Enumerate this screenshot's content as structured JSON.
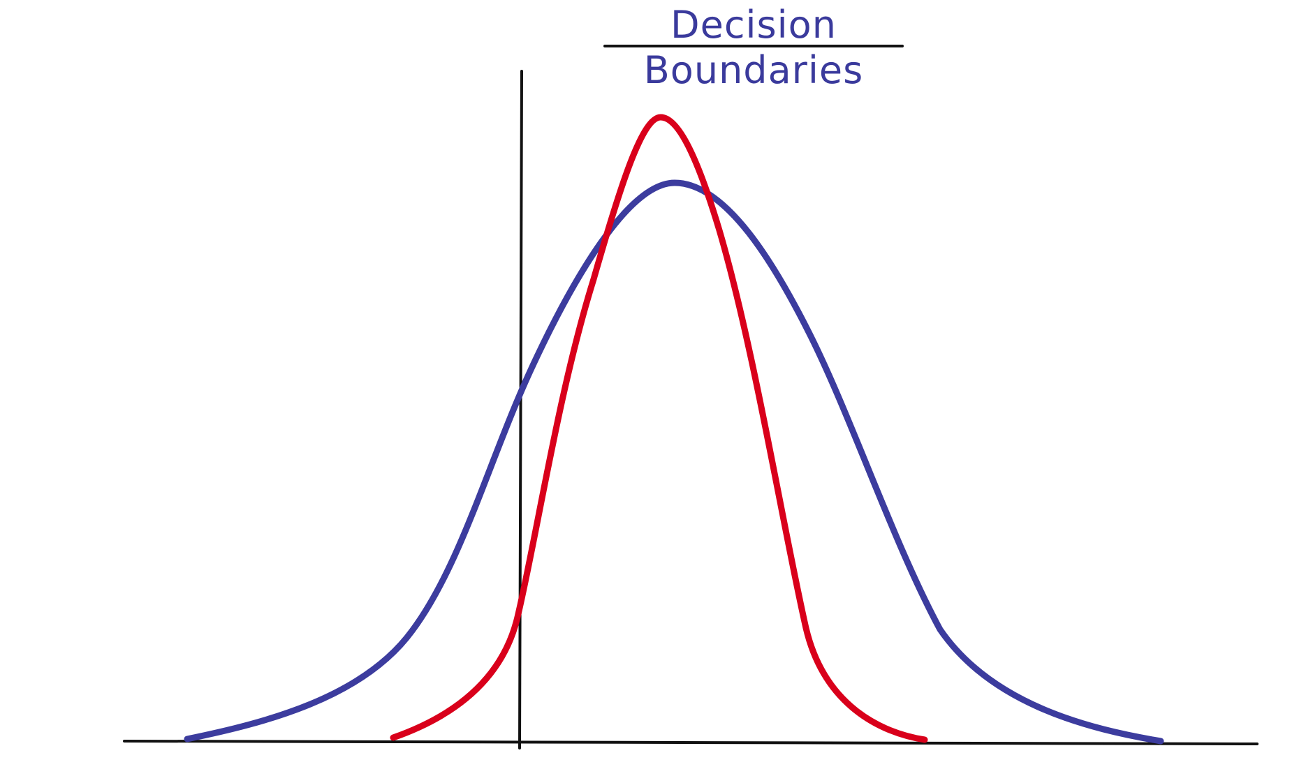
{
  "title": {
    "text": "Decision Boundaries",
    "color": "#3a3a9c",
    "underline_color": "#111111"
  },
  "curves": {
    "wide": {
      "color": "#3c3c9e",
      "description_icon": "wide-bell-curve"
    },
    "narrow": {
      "color": "#d9001b",
      "description_icon": "narrow-bell-curve"
    }
  },
  "axes": {
    "color": "#111111"
  }
}
